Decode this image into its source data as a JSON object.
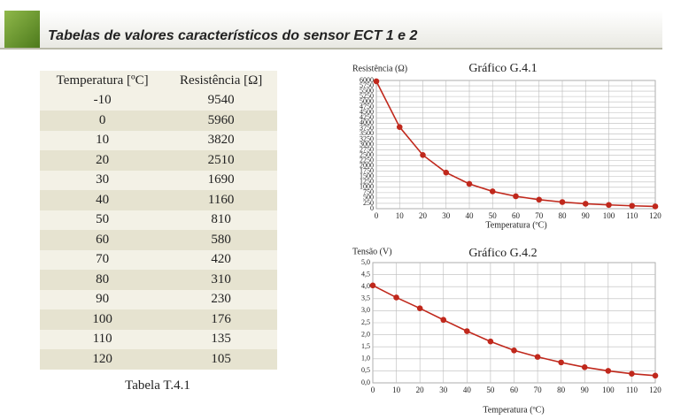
{
  "header": {
    "title": "Tabelas de valores característicos do sensor ECT 1 e 2"
  },
  "table": {
    "columns": [
      "Temperatura [ºC]",
      "Resistência [Ω]"
    ],
    "rows": [
      [
        -10,
        9540
      ],
      [
        0,
        5960
      ],
      [
        10,
        3820
      ],
      [
        20,
        2510
      ],
      [
        30,
        1690
      ],
      [
        40,
        1160
      ],
      [
        50,
        810
      ],
      [
        60,
        580
      ],
      [
        70,
        420
      ],
      [
        80,
        310
      ],
      [
        90,
        230
      ],
      [
        100,
        176
      ],
      [
        110,
        135
      ],
      [
        120,
        105
      ]
    ],
    "caption": "Tabela T.4.1"
  },
  "chart_data": [
    {
      "type": "line",
      "title": "Gráfico G.4.1",
      "y_label": "Resistência (Ω)",
      "x_label": "Temperatura (ºC)",
      "x": [
        0,
        10,
        20,
        30,
        40,
        50,
        60,
        70,
        80,
        90,
        100,
        110,
        120
      ],
      "series": [
        {
          "color": "#c0281c",
          "values": [
            5960,
            3820,
            2510,
            1690,
            1160,
            810,
            580,
            420,
            310,
            230,
            176,
            135,
            105
          ]
        }
      ],
      "xlim": [
        0,
        120
      ],
      "xticks": [
        0,
        10,
        20,
        30,
        40,
        50,
        60,
        70,
        80,
        90,
        100,
        110,
        120
      ],
      "ylim": [
        0,
        6000
      ],
      "yticks": [
        0,
        250,
        500,
        750,
        1000,
        1250,
        1500,
        1750,
        2000,
        2250,
        2500,
        2750,
        3000,
        3250,
        3500,
        3750,
        4000,
        4250,
        4500,
        4750,
        5000,
        5250,
        5500,
        5750,
        6000
      ],
      "grid": true
    },
    {
      "type": "line",
      "title": "Gráfico G.4.2",
      "y_label": "Tensão (V)",
      "x_label": "Temperatura (ºC)",
      "x": [
        0,
        10,
        20,
        30,
        40,
        50,
        60,
        70,
        80,
        90,
        100,
        110,
        120
      ],
      "series": [
        {
          "color": "#c0281c",
          "values": [
            4.05,
            3.55,
            3.1,
            2.62,
            2.15,
            1.72,
            1.35,
            1.08,
            0.85,
            0.65,
            0.5,
            0.38,
            0.3
          ]
        }
      ],
      "xlim": [
        0,
        120
      ],
      "xticks": [
        0,
        10,
        20,
        30,
        40,
        50,
        60,
        70,
        80,
        90,
        100,
        110,
        120
      ],
      "ylim": [
        0,
        5
      ],
      "yticks": [
        {
          "value": 0,
          "label": "0,0"
        },
        {
          "value": 0.5,
          "label": "0,5"
        },
        {
          "value": 1,
          "label": "1,0"
        },
        {
          "value": 1.5,
          "label": "1,5"
        },
        {
          "value": 2,
          "label": "2,0"
        },
        {
          "value": 2.5,
          "label": "2,5"
        },
        {
          "value": 3,
          "label": "3,0"
        },
        {
          "value": 3.5,
          "label": "3,5"
        },
        {
          "value": 4,
          "label": "4,0"
        },
        {
          "value": 4.5,
          "label": "4,5"
        },
        {
          "value": 5,
          "label": "5,0"
        }
      ],
      "grid": true
    }
  ]
}
